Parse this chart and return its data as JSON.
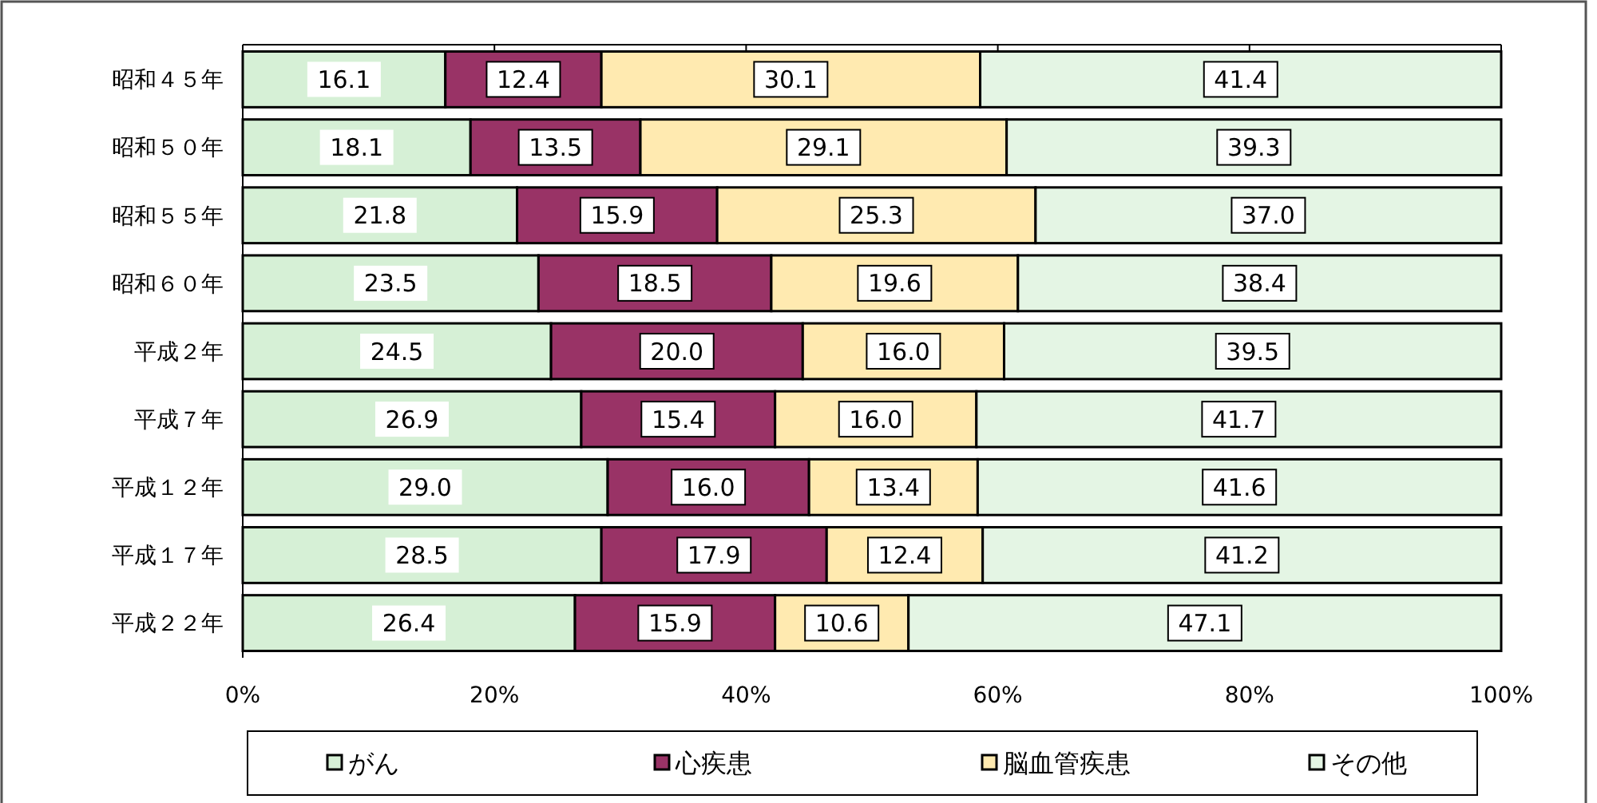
{
  "chart_data": {
    "type": "bar",
    "orientation": "horizontal",
    "stacked": true,
    "categories": [
      "昭和４５年",
      "昭和５０年",
      "昭和５５年",
      "昭和６０年",
      "平成２年",
      "平成７年",
      "平成１２年",
      "平成１７年",
      "平成２２年"
    ],
    "series": [
      {
        "name": "がん",
        "color": "#d6f0d6",
        "values": [
          16.1,
          18.1,
          21.8,
          23.5,
          24.5,
          26.9,
          29.0,
          28.5,
          26.4
        ],
        "value_labels": [
          "16.1",
          "18.1",
          "21.8",
          "23.5",
          "24.5",
          "26.9",
          "29.0",
          "28.5",
          "26.4"
        ]
      },
      {
        "name": "心疾患",
        "color": "#993366",
        "values": [
          12.4,
          13.5,
          15.9,
          18.5,
          20.0,
          15.4,
          16.0,
          17.9,
          15.9
        ],
        "value_labels": [
          "12.4",
          "13.5",
          "15.9",
          "18.5",
          "20.0",
          "15.4",
          "16.0",
          "17.9",
          "15.9"
        ]
      },
      {
        "name": "脳血管疾患",
        "color": "#ffeab0",
        "values": [
          30.1,
          29.1,
          25.3,
          19.6,
          16.0,
          16.0,
          13.4,
          12.4,
          10.6
        ],
        "value_labels": [
          "30.1",
          "29.1",
          "25.3",
          "19.6",
          "16.0",
          "16.0",
          "13.4",
          "12.4",
          "10.6"
        ]
      },
      {
        "name": "その他",
        "color": "#e4f5e4",
        "values": [
          41.4,
          39.3,
          37.0,
          38.4,
          39.5,
          41.7,
          41.6,
          41.2,
          47.1
        ],
        "value_labels": [
          "41.4",
          "39.3",
          "37.0",
          "38.4",
          "39.5",
          "41.7",
          "41.6",
          "41.2",
          "47.1"
        ]
      }
    ],
    "xlim": [
      0,
      100
    ],
    "xticks": [
      {
        "value": 0,
        "label": "0%"
      },
      {
        "value": 20,
        "label": "20%"
      },
      {
        "value": 40,
        "label": "40%"
      },
      {
        "value": 60,
        "label": "60%"
      },
      {
        "value": 80,
        "label": "80%"
      },
      {
        "value": 100,
        "label": "100%"
      }
    ],
    "legend": "bottom",
    "grid": false
  }
}
